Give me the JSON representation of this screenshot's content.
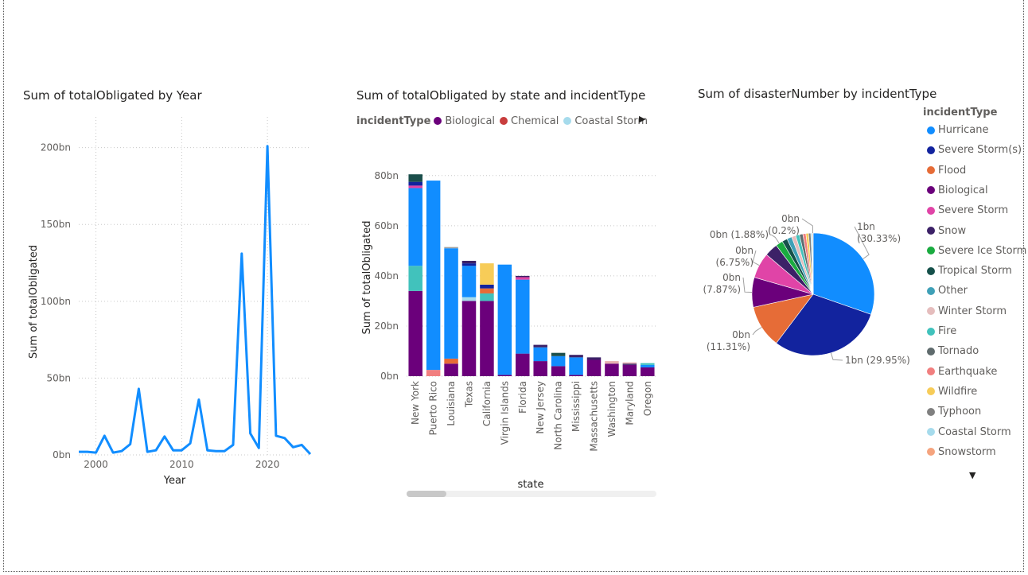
{
  "line_visual": {
    "title": "Sum of totalObligated by Year"
  },
  "bar_visual": {
    "title": "Sum of totalObligated by state and incidentType",
    "legend_title": "incidentType",
    "legend_more": "▶"
  },
  "pie_visual": {
    "title": "Sum of disasterNumber by incidentType",
    "legend_title": "incidentType",
    "legend_more": "▼"
  },
  "chart_data": [
    {
      "type": "line",
      "title": "Sum of totalObligated by Year",
      "xlabel": "Year",
      "ylabel": "Sum of totalObligated",
      "xlim": [
        1998,
        2025
      ],
      "ylim": [
        0,
        220
      ],
      "xticks": [
        {
          "v": 2000,
          "label": "2000"
        },
        {
          "v": 2010,
          "label": "2010"
        },
        {
          "v": 2020,
          "label": "2020"
        }
      ],
      "yticks": [
        {
          "v": 0,
          "label": "0bn"
        },
        {
          "v": 50,
          "label": "50bn"
        },
        {
          "v": 100,
          "label": "100bn"
        },
        {
          "v": 150,
          "label": "150bn"
        },
        {
          "v": 200,
          "label": "200bn"
        }
      ],
      "grid": true,
      "color": "#118DFF",
      "x": [
        1998,
        1999,
        2000,
        2001,
        2002,
        2003,
        2004,
        2005,
        2006,
        2007,
        2008,
        2009,
        2010,
        2011,
        2012,
        2013,
        2014,
        2015,
        2016,
        2017,
        2018,
        2019,
        2020,
        2021,
        2022,
        2023,
        2024,
        2025
      ],
      "y": [
        2,
        2,
        1.5,
        12.5,
        1.5,
        2.5,
        7,
        43,
        2,
        3,
        12,
        3,
        3,
        7.5,
        36,
        3,
        2.5,
        2.5,
        6.5,
        131,
        14,
        4.5,
        201,
        12.5,
        11,
        5,
        6.5,
        0.5
      ]
    },
    {
      "type": "bar",
      "stacked": true,
      "title": "Sum of totalObligated by state and incidentType",
      "xlabel": "state",
      "ylabel": "Sum of totalObligated",
      "ylim": [
        0,
        85
      ],
      "yticks": [
        {
          "v": 0,
          "label": "0bn"
        },
        {
          "v": 20,
          "label": "20bn"
        },
        {
          "v": 40,
          "label": "40bn"
        },
        {
          "v": 60,
          "label": "60bn"
        },
        {
          "v": 80,
          "label": "80bn"
        }
      ],
      "grid": true,
      "legend": {
        "position": "top",
        "items": [
          {
            "name": "Biological",
            "color": "#6B007B"
          },
          {
            "name": "Chemical",
            "color": "#C83D3D"
          },
          {
            "name": "Coastal Storm",
            "color": "#A6DBEC"
          }
        ]
      },
      "categories": [
        "New York",
        "Puerto Rico",
        "Louisiana",
        "Texas",
        "California",
        "Virgin Islands",
        "Florida",
        "New Jersey",
        "North Carolina",
        "Mississippi",
        "Massachusetts",
        "Washington",
        "Maryland",
        "Oregon"
      ],
      "stacks": [
        [
          {
            "color": "#6B007B",
            "value": 34
          },
          {
            "color": "#41C2BC",
            "value": 10
          },
          {
            "color": "#118DFF",
            "value": 31
          },
          {
            "color": "#E044A7",
            "value": 1
          },
          {
            "color": "#12239E",
            "value": 1.5
          },
          {
            "color": "#1B4F4B",
            "value": 3
          }
        ],
        [
          {
            "color": "#F17F7F",
            "value": 2.5
          },
          {
            "color": "#118DFF",
            "value": 75.5
          }
        ],
        [
          {
            "color": "#6B007B",
            "value": 5
          },
          {
            "color": "#E66C37",
            "value": 2
          },
          {
            "color": "#118DFF",
            "value": 44
          },
          {
            "color": "#9FA0A0",
            "value": 0.5
          }
        ],
        [
          {
            "color": "#6B007B",
            "value": 30
          },
          {
            "color": "#A6DBEC",
            "value": 1.5
          },
          {
            "color": "#118DFF",
            "value": 12.5
          },
          {
            "color": "#12239E",
            "value": 1
          },
          {
            "color": "#3C2167",
            "value": 1
          }
        ],
        [
          {
            "color": "#6B007B",
            "value": 30
          },
          {
            "color": "#41C2BC",
            "value": 3
          },
          {
            "color": "#E66C37",
            "value": 2
          },
          {
            "color": "#12239E",
            "value": 1.5
          },
          {
            "color": "#F7CC58",
            "value": 8.5
          }
        ],
        [
          {
            "color": "#6B007B",
            "value": 0.5
          },
          {
            "color": "#118DFF",
            "value": 44
          }
        ],
        [
          {
            "color": "#6B007B",
            "value": 9
          },
          {
            "color": "#118DFF",
            "value": 29.5
          },
          {
            "color": "#E044A7",
            "value": 1
          },
          {
            "color": "#3C2167",
            "value": 0.5
          }
        ],
        [
          {
            "color": "#6B007B",
            "value": 6
          },
          {
            "color": "#118DFF",
            "value": 5.5
          },
          {
            "color": "#3C2167",
            "value": 1
          }
        ],
        [
          {
            "color": "#6B007B",
            "value": 4
          },
          {
            "color": "#118DFF",
            "value": 4
          },
          {
            "color": "#1B4F4B",
            "value": 1.3
          }
        ],
        [
          {
            "color": "#6B007B",
            "value": 0.5
          },
          {
            "color": "#118DFF",
            "value": 7
          },
          {
            "color": "#3C2167",
            "value": 1
          }
        ],
        [
          {
            "color": "#6B007B",
            "value": 6.5
          },
          {
            "color": "#3C2167",
            "value": 1
          }
        ],
        [
          {
            "color": "#6B007B",
            "value": 5
          },
          {
            "color": "#E8B0B0",
            "value": 1
          }
        ],
        [
          {
            "color": "#6B007B",
            "value": 4.5
          },
          {
            "color": "#3C2167",
            "value": 0.5
          },
          {
            "color": "#E8B0B0",
            "value": 0.5
          }
        ],
        [
          {
            "color": "#6B007B",
            "value": 3.5
          },
          {
            "color": "#118DFF",
            "value": 1
          },
          {
            "color": "#41C2BC",
            "value": 0.7
          }
        ]
      ]
    },
    {
      "type": "pie",
      "title": "Sum of disasterNumber by incidentType",
      "legend": {
        "position": "right",
        "title": "incidentType"
      },
      "slices": [
        {
          "name": "Hurricane",
          "color": "#118DFF",
          "percent": 30.33,
          "label": "1bn\n(30.33%)"
        },
        {
          "name": "Severe Storm(s)",
          "color": "#12239E",
          "percent": 29.95,
          "label": "1bn (29.95%)"
        },
        {
          "name": "Flood",
          "color": "#E66C37",
          "percent": 11.31,
          "label": "0bn\n(11.31%)"
        },
        {
          "name": "Biological",
          "color": "#6B007B",
          "percent": 7.87,
          "label": "0bn\n(7.87%)"
        },
        {
          "name": "Severe Storm",
          "color": "#E044A7",
          "percent": 6.75,
          "label": "0bn\n(6.75%)"
        },
        {
          "name": "Snow",
          "color": "#3C2167",
          "percent": 3.5,
          "label": ""
        },
        {
          "name": "Severe Ice Storm",
          "color": "#1AAB40",
          "percent": 1.88,
          "label": "0bn (1.88%)"
        },
        {
          "name": "Tropical Storm",
          "color": "#15504A",
          "percent": 1.4,
          "label": ""
        },
        {
          "name": "Other",
          "color": "#3FA0B7",
          "percent": 1.3,
          "label": ""
        },
        {
          "name": "Winter Storm",
          "color": "#E5BDBD",
          "percent": 1.1,
          "label": ""
        },
        {
          "name": "Fire",
          "color": "#41C2BC",
          "percent": 1.0,
          "label": ""
        },
        {
          "name": "Tornado",
          "color": "#5F6B6D",
          "percent": 0.9,
          "label": ""
        },
        {
          "name": "Earthquake",
          "color": "#F17F7F",
          "percent": 0.8,
          "label": ""
        },
        {
          "name": "Wildfire",
          "color": "#F7CC58",
          "percent": 0.7,
          "label": ""
        },
        {
          "name": "Typhoon",
          "color": "#808080",
          "percent": 0.6,
          "label": ""
        },
        {
          "name": "Coastal Storm",
          "color": "#A6DBEC",
          "percent": 0.4,
          "label": ""
        },
        {
          "name": "Snowstorm",
          "color": "#F5A47E",
          "percent": 0.2,
          "label": "0bn\n(0.2%)"
        }
      ]
    }
  ]
}
